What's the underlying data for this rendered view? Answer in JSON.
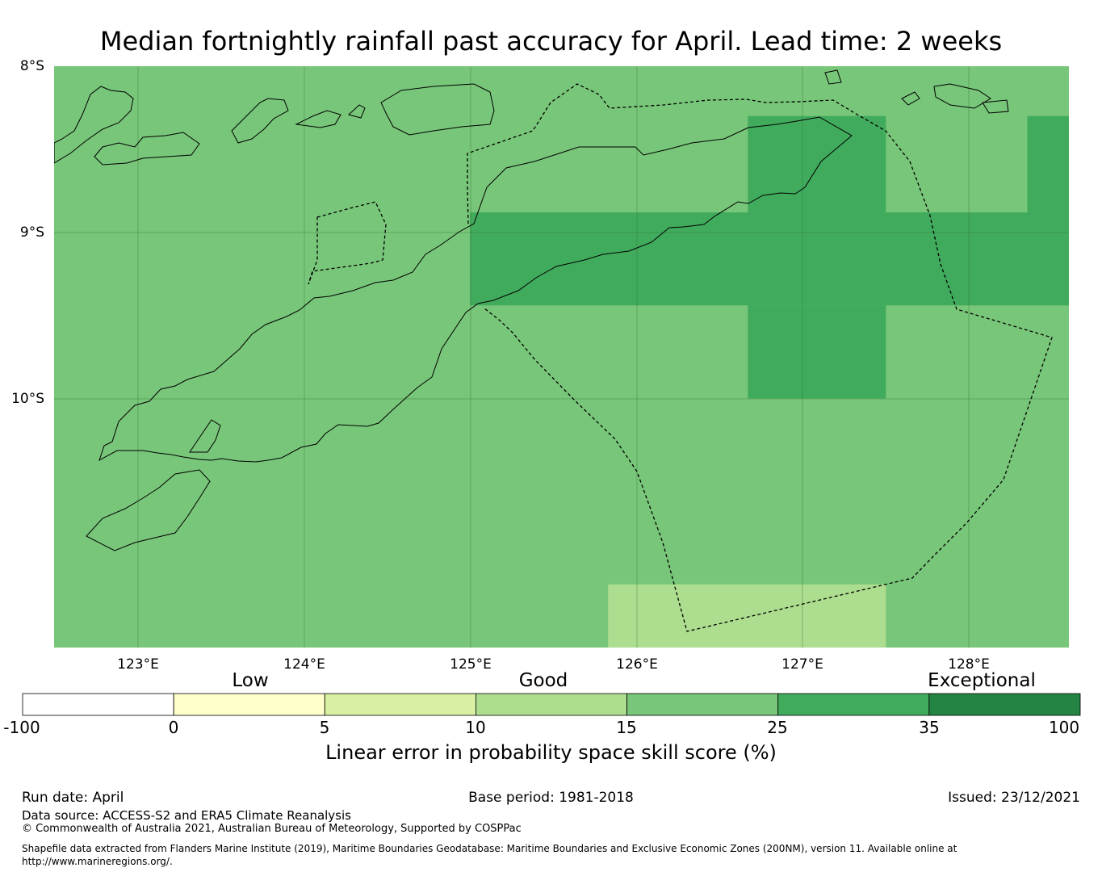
{
  "title": "Median fortnightly rainfall past accuracy for April. Lead time: 2 weeks",
  "map": {
    "lat_labels": [
      "8°S",
      "9°S",
      "10°S"
    ],
    "lon_labels": [
      "123°E",
      "124°E",
      "125°E",
      "126°E",
      "127°E",
      "128°E"
    ],
    "lon_range": [
      122.5,
      128.6
    ],
    "lat_range": [
      -8.0,
      -11.5
    ],
    "background_category": "15-25",
    "cells": [
      {
        "lon": [
          127.5,
          128.35
        ],
        "lat": [
          -8.3,
          -8.85
        ],
        "category": "15-25"
      },
      {
        "lon": [
          126.67,
          127.5
        ],
        "lat": [
          -8.3,
          -8.88
        ],
        "category": "25-35"
      },
      {
        "lon": [
          128.35,
          128.6
        ],
        "lat": [
          -8.3,
          -8.88
        ],
        "category": "25-35"
      },
      {
        "lon": [
          125.0,
          128.6
        ],
        "lat": [
          -8.88,
          -9.44
        ],
        "category": "25-35"
      },
      {
        "lon": [
          126.67,
          127.5
        ],
        "lat": [
          -9.44,
          -10.0
        ],
        "category": "25-35"
      },
      {
        "lon": [
          125.83,
          127.5
        ],
        "lat": [
          -11.12,
          -11.5
        ],
        "category": "10-15"
      }
    ]
  },
  "colorbar": {
    "categories": [
      "Low",
      "Good",
      "Exceptional"
    ],
    "ticks": [
      "-100",
      "0",
      "5",
      "10",
      "15",
      "25",
      "35",
      "100"
    ],
    "colors": [
      "#ffffff",
      "#ffffcc",
      "#d9f0a3",
      "#addd8e",
      "#78c679",
      "#41ab5d",
      "#238443"
    ],
    "label": "Linear error in probability space skill score (%)"
  },
  "footer": {
    "run_date": "Run date: April",
    "base_period": "Base period: 1981-2018",
    "issued": "Issued: 23/12/2021",
    "data_source": "Data source: ACCESS-S2 and ERA5 Climate Reanalysis",
    "copyright": "© Commonwealth of Australia 2021, Australian Bureau of Meteorology, Supported by COSPPac",
    "shapefile": "Shapefile data extracted from Flanders Marine Institute (2019), Maritime Boundaries Geodatabase: Maritime Boundaries and Exclusive Economic Zones (200NM), version 11. Available online at http://www.marineregions.org/."
  }
}
